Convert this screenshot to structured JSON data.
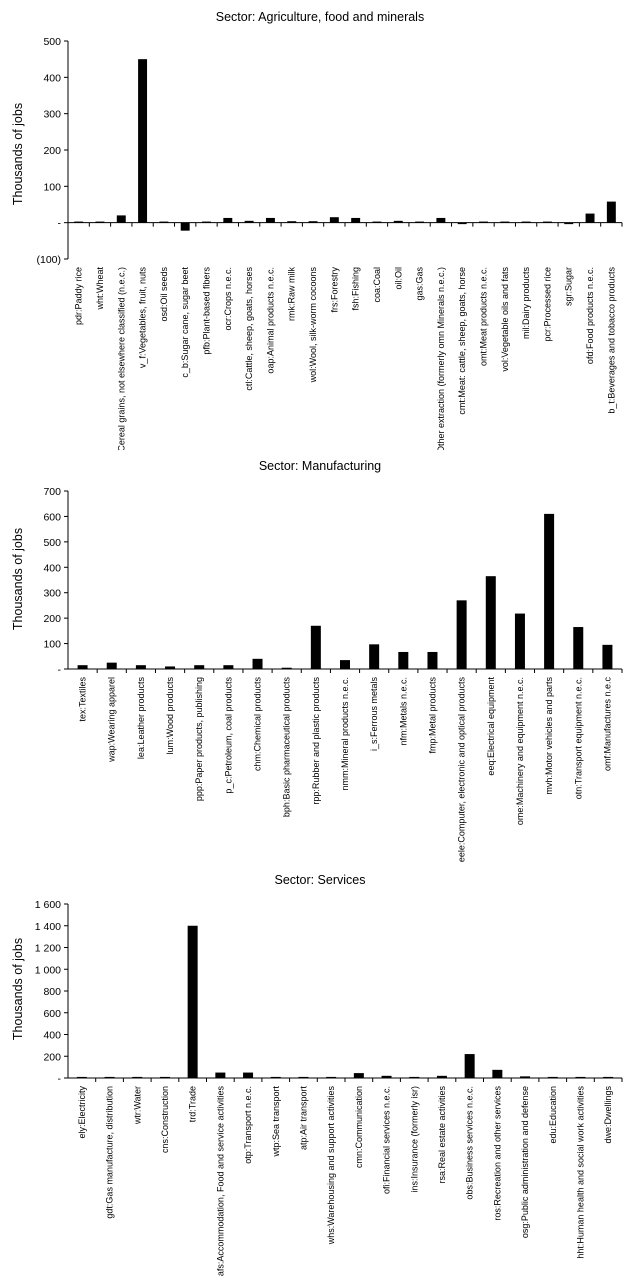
{
  "chart_data": [
    {
      "type": "bar",
      "title": "Sector: Agriculture, food and  minerals",
      "ylabel": "Thousands of jobs",
      "xlabel": "",
      "ylim": [
        -100,
        500
      ],
      "yticks": [
        -100,
        0,
        100,
        200,
        300,
        400,
        500
      ],
      "ytick_labels": [
        "(100)",
        "-",
        "100",
        "200",
        "300",
        "400",
        "500"
      ],
      "categories": [
        "pdr:Paddy rice",
        "wht:Wheat",
        "gro:Cereal grains, not elsewhere classified (n.e.c.)",
        "v_f:Vegetables, fruit, nuts",
        "osd:Oil seeds",
        "c_b:Sugar cane, sugar beet",
        "pfb:Plant-based fibers",
        "ocr:Crops n.e.c.",
        "ctl:Cattle, sheep, goats, horses",
        "oap:Animal products n.e.c.",
        "rmk:Raw milk",
        "wol:Wool, silk-worm cocoons",
        "frs:Forestry",
        "fsh:Fishing",
        "coa:Coal",
        "oil:Oil",
        "gas:Gas",
        "oxt:Other extraction (formerly omn Minerals n.e.c.)",
        "cmt:Meat: cattle, sheep, goats, horse",
        "omt:Meat products n.e.c.",
        "vol:Vegetable oils and fats",
        "mil:Dairy products",
        "pcr:Processed rice",
        "sgr:Sugar",
        "ofd:Food products n.e.c.",
        "b_t:Beverages and tobacco products"
      ],
      "values": [
        3,
        3,
        20,
        450,
        3,
        -22,
        3,
        13,
        5,
        13,
        4,
        4,
        15,
        13,
        3,
        5,
        3,
        13,
        -4,
        3,
        3,
        3,
        3,
        -4,
        25,
        58
      ]
    },
    {
      "type": "bar",
      "title": "Sector: Manufacturing",
      "ylabel": "Thousands of jobs",
      "xlabel": "",
      "ylim": [
        0,
        700
      ],
      "yticks": [
        0,
        100,
        200,
        300,
        400,
        500,
        600,
        700
      ],
      "ytick_labels": [
        "-",
        "100",
        "200",
        "300",
        "400",
        "500",
        "600",
        "700"
      ],
      "categories": [
        "tex:Textiles",
        "wap:Wearing apparel",
        "lea:Leather products",
        "lum:Wood products",
        "ppp:Paper products, publishing",
        "p_c:Petroleum, coal products",
        "chm:Chemical products",
        "bph:Basic pharmaceutical products",
        "rpp:Rubber and plastic products",
        "nmm:Mineral products n.e.c.",
        "i_s:Ferrous metals",
        "nfm:Metals n.e.c.",
        "fmp:Metal products",
        "eele:Computer, electronic and optical products",
        "eeq:Electrical equipment",
        "ome:Machinery and equipment n.e.c.",
        "mvh:Motor vehicles and parts",
        "otn:Transport equipment n.e.c.",
        "omf:Manufactures n.e.c"
      ],
      "values": [
        15,
        25,
        15,
        10,
        15,
        15,
        40,
        5,
        170,
        35,
        97,
        67,
        67,
        270,
        365,
        218,
        610,
        165,
        95
      ]
    },
    {
      "type": "bar",
      "title": "Sector: Services",
      "ylabel": "Thousands of jobs",
      "xlabel": "",
      "ylim": [
        0,
        1600
      ],
      "yticks": [
        0,
        200,
        400,
        600,
        800,
        1000,
        1200,
        1400,
        1600
      ],
      "ytick_labels": [
        "-",
        "200",
        "400",
        "600",
        "800",
        "1 000",
        "1 200",
        "1 400",
        "1 600"
      ],
      "categories": [
        "ely:Electricity",
        "gdt:Gas manufacture, distribution",
        "wtr:Water",
        "cns:Construction",
        "trd:Trade",
        "afs:Accommodation, Food and service activities",
        "otp:Transport n.e.c.",
        "wtp:Sea transport",
        "atp:Air transport",
        "whs:Warehousing and support activities",
        "cmn:Communication",
        "ofi:Financial services n.e.c.",
        "ins:Insurance (formerly isr)",
        "rsa:Real estate activities",
        "obs:Business services n.e.c.",
        "ros:Recreation and other services",
        "osg:Public administration and defense",
        "edu:Education",
        "hht:Human health and social work activities",
        "dwe:Dwellings"
      ],
      "values": [
        10,
        10,
        10,
        10,
        1400,
        50,
        50,
        10,
        10,
        10,
        45,
        20,
        10,
        20,
        220,
        75,
        15,
        10,
        10,
        10
      ]
    }
  ]
}
